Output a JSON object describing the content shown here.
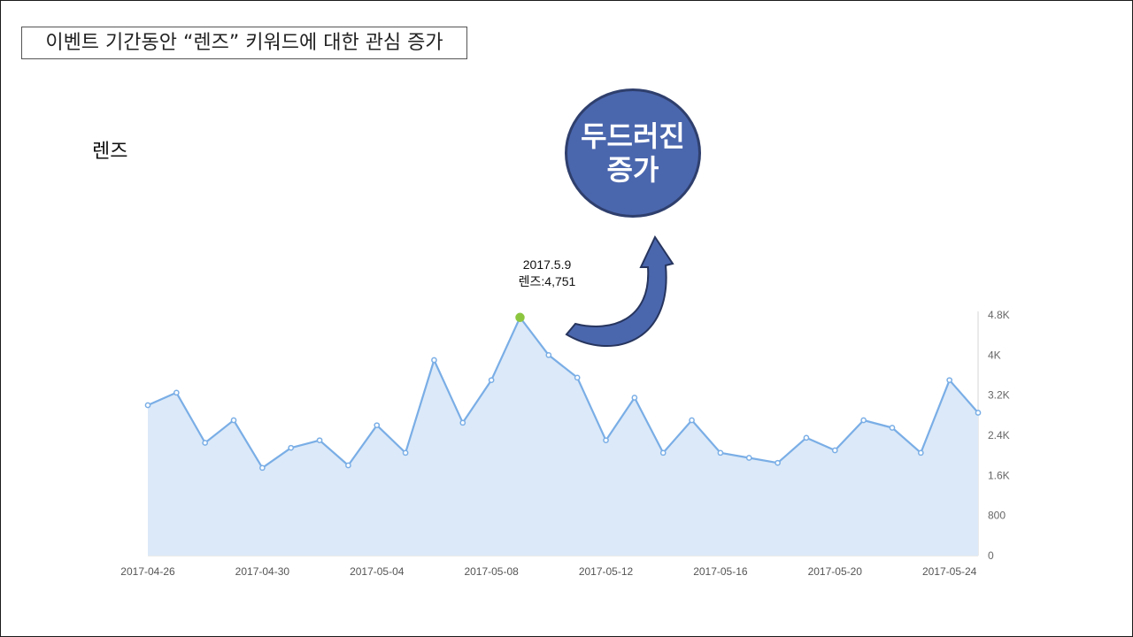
{
  "slide": {
    "title": "이벤트 기간동안 “렌즈” 키워드에 대한 관심 증가",
    "keyword_label": "렌즈",
    "badge_text": "두드러진\n증가",
    "callout": {
      "date": "2017.5.9",
      "value_label": "렌즈:4,751"
    }
  },
  "colors": {
    "line": "#7aaee6",
    "area": "#dce9f8",
    "highlight_point": "#8cc63f",
    "badge_fill": "#4a66ad",
    "arrow_fill": "#4a66ad"
  },
  "chart_data": {
    "type": "area",
    "x": [
      "2017-04-26",
      "2017-04-27",
      "2017-04-28",
      "2017-04-29",
      "2017-04-30",
      "2017-05-01",
      "2017-05-02",
      "2017-05-03",
      "2017-05-04",
      "2017-05-05",
      "2017-05-06",
      "2017-05-07",
      "2017-05-08",
      "2017-05-09",
      "2017-05-10",
      "2017-05-11",
      "2017-05-12",
      "2017-05-13",
      "2017-05-14",
      "2017-05-15",
      "2017-05-16",
      "2017-05-17",
      "2017-05-18",
      "2017-05-19",
      "2017-05-20",
      "2017-05-21",
      "2017-05-22",
      "2017-05-23",
      "2017-05-24",
      "2017-05-25"
    ],
    "series": [
      {
        "values": [
          3000,
          3250,
          2250,
          2700,
          1750,
          2150,
          2300,
          1800,
          2600,
          2050,
          3900,
          2650,
          3500,
          4751,
          4000,
          3550,
          2300,
          3150,
          2050,
          2700,
          2050,
          1950,
          1850,
          2350,
          2100,
          2700,
          2550,
          2050,
          3500,
          2850
        ]
      }
    ],
    "xticks": [
      "2017-04-26",
      "2017-04-30",
      "2017-05-04",
      "2017-05-08",
      "2017-05-12",
      "2017-05-16",
      "2017-05-20",
      "2017-05-24"
    ],
    "yticks": [
      {
        "value": 0,
        "label": "0"
      },
      {
        "value": 800,
        "label": "800"
      },
      {
        "value": 1600,
        "label": "1.6K"
      },
      {
        "value": 2400,
        "label": "2.4K"
      },
      {
        "value": 3200,
        "label": "3.2K"
      },
      {
        "value": 4000,
        "label": "4K"
      },
      {
        "value": 4800,
        "label": "4.8K"
      }
    ],
    "ylim": [
      0,
      4800
    ],
    "highlight": {
      "x": "2017-05-09",
      "y": 4751
    },
    "y_axis_side": "right",
    "grid": false,
    "legend": "none"
  }
}
